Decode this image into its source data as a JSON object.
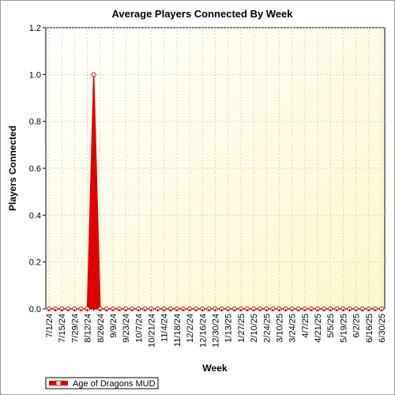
{
  "chart_data": {
    "type": "area",
    "title": "Average Players Connected By Week",
    "x_label": "Week",
    "y_label": "Players Connected",
    "categories": [
      "7/1/24",
      null,
      "7/15/24",
      null,
      "7/29/24",
      null,
      "8/12/24",
      null,
      "8/26/24",
      null,
      "9/9/24",
      null,
      "9/23/24",
      null,
      "10/7/24",
      null,
      "10/21/24",
      null,
      "11/4/24",
      null,
      "11/18/24",
      null,
      "12/2/24",
      null,
      "12/16/24",
      null,
      "12/30/24",
      null,
      "1/13/25",
      null,
      "1/27/25",
      null,
      "2/10/25",
      null,
      "2/24/25",
      null,
      "3/10/25",
      null,
      "3/24/25",
      null,
      "4/7/25",
      null,
      "4/21/25",
      null,
      "5/5/25",
      null,
      "5/19/25",
      null,
      "6/2/25",
      null,
      "6/16/25",
      null,
      "6/30/25"
    ],
    "series": [
      {
        "name": "Age of Dragons MUD",
        "color": "#e00000",
        "values": [
          0,
          0,
          0,
          0,
          0,
          0,
          0,
          1.0,
          0,
          0,
          0,
          0,
          0,
          0,
          0,
          0,
          0,
          0,
          0,
          0,
          0,
          0,
          0,
          0,
          0,
          0,
          0,
          0,
          0,
          0,
          0,
          0,
          0,
          0,
          0,
          0,
          0,
          0,
          0,
          0,
          0,
          0,
          0,
          0,
          0,
          0,
          0,
          0,
          0,
          0,
          0,
          0,
          0
        ]
      }
    ],
    "ylim": [
      0,
      1.2
    ],
    "yticks": [
      {
        "value": 0,
        "label": "0.0"
      },
      0.2,
      0.4,
      0.6,
      0.8,
      {
        "value": 1,
        "label": "1.0"
      },
      1.2
    ],
    "grid": true,
    "legend": "bottom-left"
  }
}
